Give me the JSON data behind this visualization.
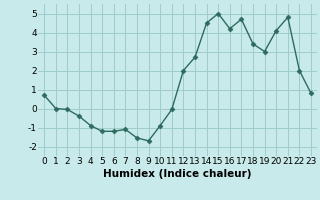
{
  "x": [
    0,
    1,
    2,
    3,
    4,
    5,
    6,
    7,
    8,
    9,
    10,
    11,
    12,
    13,
    14,
    15,
    16,
    17,
    18,
    19,
    20,
    21,
    22,
    23
  ],
  "y": [
    0.7,
    0.0,
    -0.05,
    -0.4,
    -0.9,
    -1.2,
    -1.2,
    -1.1,
    -1.55,
    -1.7,
    -0.9,
    -0.05,
    2.0,
    2.7,
    4.5,
    5.0,
    4.2,
    4.7,
    3.4,
    3.0,
    4.1,
    4.8,
    2.0,
    0.8
  ],
  "line_color": "#2e6b5e",
  "marker": "D",
  "marker_size": 2.5,
  "bg_color": "#c8eaea",
  "grid_color": "#a0cccc",
  "xlabel": "Humidex (Indice chaleur)",
  "ylim": [
    -2.5,
    5.5
  ],
  "xlim": [
    -0.5,
    23.5
  ],
  "yticks": [
    -2,
    -1,
    0,
    1,
    2,
    3,
    4,
    5
  ],
  "xticks": [
    0,
    1,
    2,
    3,
    4,
    5,
    6,
    7,
    8,
    9,
    10,
    11,
    12,
    13,
    14,
    15,
    16,
    17,
    18,
    19,
    20,
    21,
    22,
    23
  ],
  "tick_fontsize": 6.5,
  "xlabel_fontsize": 7.5,
  "line_width": 1.0
}
